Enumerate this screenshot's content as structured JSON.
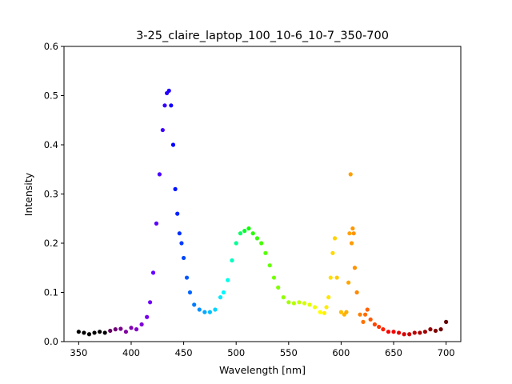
{
  "chart_data": {
    "type": "scatter",
    "title": "3-25_claire_laptop_100_10-6_10-7_350-700",
    "xlabel": "Wavelength [nm]",
    "ylabel": "Intensity",
    "xlim": [
      336,
      714
    ],
    "ylim": [
      0,
      0.6
    ],
    "xticks": [
      350,
      400,
      450,
      500,
      550,
      600,
      650,
      700
    ],
    "yticks": [
      0.0,
      0.1,
      0.2,
      0.3,
      0.4,
      0.5,
      0.6
    ],
    "xtick_labels": [
      "350",
      "400",
      "450",
      "500",
      "550",
      "600",
      "650",
      "700"
    ],
    "ytick_labels": [
      "0.0",
      "0.1",
      "0.2",
      "0.3",
      "0.4",
      "0.5",
      "0.6"
    ],
    "grid": false,
    "legend": "none",
    "color_map": "wavelength-spectrum",
    "series": [
      {
        "x": [
          350,
          355,
          360,
          365,
          370,
          375,
          380,
          385,
          390,
          395,
          400,
          405,
          410,
          415,
          418,
          421,
          424,
          427,
          430,
          432,
          434,
          436,
          438,
          440,
          442,
          444,
          446,
          448,
          450,
          453,
          456,
          460,
          465,
          470,
          475,
          480,
          485,
          488,
          492,
          496,
          500,
          504,
          508,
          512,
          516,
          520,
          524,
          528,
          532,
          536,
          540,
          545,
          550,
          555,
          560,
          565,
          570,
          575,
          580,
          584,
          586,
          588,
          590,
          592,
          594,
          596,
          600,
          603,
          605,
          607,
          608,
          609,
          610,
          611,
          612,
          613,
          615,
          618,
          621,
          623,
          625,
          628,
          632,
          636,
          640,
          645,
          650,
          655,
          660,
          665,
          670,
          675,
          680,
          685,
          690,
          695,
          700
        ],
        "y": [
          0.02,
          0.018,
          0.015,
          0.018,
          0.02,
          0.018,
          0.022,
          0.025,
          0.026,
          0.02,
          0.028,
          0.025,
          0.035,
          0.05,
          0.08,
          0.14,
          0.24,
          0.34,
          0.43,
          0.48,
          0.505,
          0.51,
          0.48,
          0.4,
          0.31,
          0.26,
          0.22,
          0.2,
          0.17,
          0.13,
          0.1,
          0.075,
          0.065,
          0.06,
          0.06,
          0.065,
          0.09,
          0.1,
          0.125,
          0.165,
          0.2,
          0.22,
          0.225,
          0.23,
          0.22,
          0.21,
          0.2,
          0.18,
          0.155,
          0.13,
          0.11,
          0.09,
          0.08,
          0.078,
          0.08,
          0.078,
          0.075,
          0.07,
          0.06,
          0.058,
          0.07,
          0.09,
          0.13,
          0.18,
          0.21,
          0.13,
          0.06,
          0.055,
          0.06,
          0.12,
          0.22,
          0.34,
          0.2,
          0.23,
          0.22,
          0.15,
          0.1,
          0.055,
          0.04,
          0.055,
          0.065,
          0.045,
          0.035,
          0.03,
          0.025,
          0.02,
          0.02,
          0.018,
          0.015,
          0.015,
          0.018,
          0.018,
          0.02,
          0.025,
          0.022,
          0.025,
          0.04
        ]
      }
    ]
  }
}
